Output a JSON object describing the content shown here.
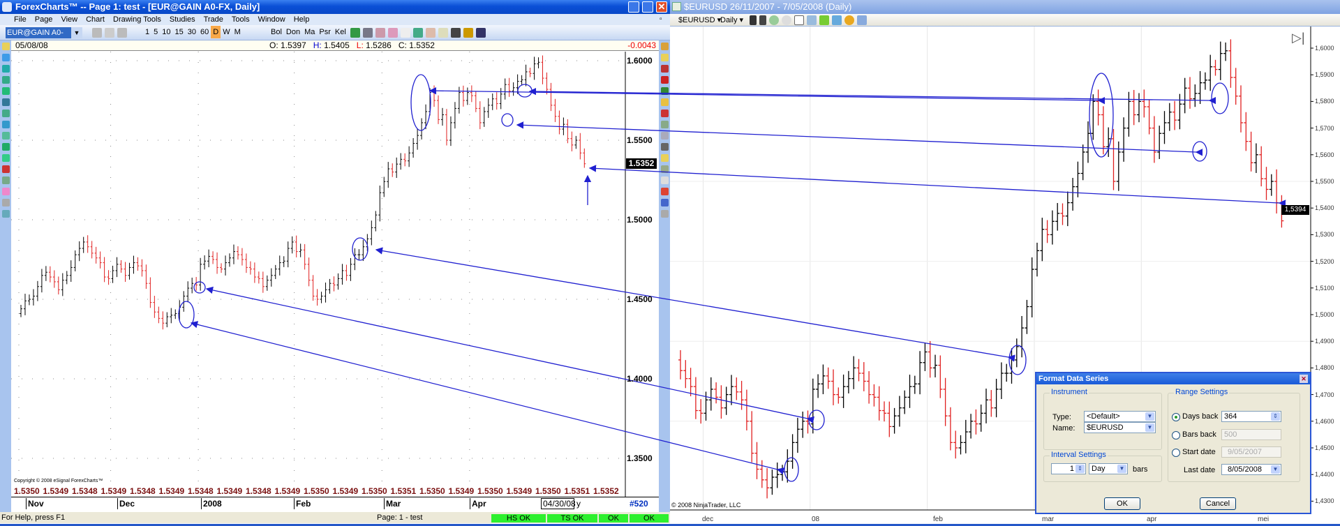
{
  "left_window": {
    "title": "ForexCharts™  --  Page 1: test - [EUR@GAIN A0-FX, Daily]",
    "menu": [
      "File",
      "Page",
      "View",
      "Chart",
      "Drawing Tools",
      "Studies",
      "Trade",
      "Tools",
      "Window",
      "Help"
    ],
    "symbol": "EUR@GAIN A0-FX",
    "intervals": [
      "1",
      "5",
      "10",
      "15",
      "30",
      "60",
      "D",
      "W",
      "M"
    ],
    "active_interval": "D",
    "studies": [
      "Bol",
      "Don",
      "Ma",
      "Psr",
      "Kel"
    ],
    "header": {
      "date": "05/08/08",
      "o_label": "O:",
      "o": "1.5397",
      "h_label": "H:",
      "h": "1.5405",
      "l_label": "L:",
      "l": "1.5286",
      "c_label": "C:",
      "c": "1.5352",
      "change": "-0.0043"
    },
    "price_ticks": [
      "1.6000",
      "1.5500",
      "1.5000",
      "1.4500",
      "1.4000",
      "1.3500"
    ],
    "last_price": "1.5352",
    "copyright": "Copyright © 2008 eSignal ForexCharts™",
    "price_row": [
      "1.5350",
      "1.5349",
      "1.5348",
      "1.5349",
      "1.5348",
      "1.5349",
      "1.5348",
      "1.5349",
      "1.5348",
      "1.5349",
      "1.5350",
      "1.5349",
      "1.5350",
      "1.5351",
      "1.5350",
      "1.5349",
      "1.5350",
      "1.5349",
      "1.5350",
      "1.5351",
      "1.5352"
    ],
    "months": [
      "Nov",
      "Dec",
      "2008",
      "Feb",
      "Mar",
      "Apr"
    ],
    "cursor_date": "04/30/08",
    "cursor_suffix": "y",
    "bar_count": "#520",
    "status": {
      "help": "For Help, press F1",
      "page": "Page: 1 - test",
      "boxes": [
        "HS OK",
        "TS OK",
        "OK",
        "OK"
      ]
    }
  },
  "right_window": {
    "title": "$EURUSD  26/11/2007 - 7/05/2008 (Daily)",
    "instrument": "$EURUSD",
    "interval": "Daily",
    "price_ticks": [
      "1,6000",
      "1,5900",
      "1,5800",
      "1,5700",
      "1,5600",
      "1,5500",
      "1,5400",
      "1,5300",
      "1,5200",
      "1,5100",
      "1,5000",
      "1,4900",
      "1,4800",
      "1,4700",
      "1,4600",
      "1,4500",
      "1,4400",
      "1,4300"
    ],
    "last_price": "1,5394",
    "months": [
      "dec",
      "08",
      "feb",
      "mar",
      "apr",
      "mei"
    ],
    "copyright": "© 2008 NinjaTrader, LLC"
  },
  "dialog": {
    "title": "Format Data Series",
    "instrument_group": "Instrument",
    "type_label": "Type:",
    "type_value": "<Default>",
    "name_label": "Name:",
    "name_value": "$EURUSD",
    "interval_group": "Interval Settings",
    "interval_value": "1",
    "interval_unit": "Day",
    "bars_label": "bars",
    "range_group": "Range Settings",
    "days_back_label": "Days back",
    "days_back_value": "364",
    "bars_back_label": "Bars back",
    "bars_back_value": "500",
    "start_date_label": "Start date",
    "start_date_value": "9/05/2007",
    "last_date_label": "Last date",
    "last_date_value": "8/05/2008",
    "selected_range": "Days back",
    "ok": "OK",
    "cancel": "Cancel"
  },
  "colors": {
    "up": "#000000",
    "down": "#e02020",
    "annotation": "#2020d0",
    "ok": "#2ef02e"
  },
  "chart_data": {
    "type": "ohlc",
    "closes": [
      1.444,
      1.449,
      1.45,
      1.452,
      1.458,
      1.465,
      1.467,
      1.464,
      1.461,
      1.456,
      1.462,
      1.465,
      1.47,
      1.478,
      1.482,
      1.486,
      1.483,
      1.479,
      1.476,
      1.473,
      1.464,
      1.463,
      1.468,
      1.472,
      1.469,
      1.465,
      1.47,
      1.473,
      1.471,
      1.468,
      1.46,
      1.448,
      1.442,
      1.438,
      1.435,
      1.439,
      1.44,
      1.441,
      1.445,
      1.452,
      1.457,
      1.46,
      1.459,
      1.472,
      1.474,
      1.477,
      1.475,
      1.47,
      1.469,
      1.473,
      1.476,
      1.48,
      1.478,
      1.475,
      1.47,
      1.469,
      1.464,
      1.463,
      1.458,
      1.462,
      1.465,
      1.469,
      1.473,
      1.474,
      1.482,
      1.486,
      1.48,
      1.481,
      1.472,
      1.462,
      1.452,
      1.45,
      1.452,
      1.456,
      1.46,
      1.459,
      1.463,
      1.468,
      1.465,
      1.472,
      1.478,
      1.478,
      1.483,
      1.488,
      1.495,
      1.503,
      1.517,
      1.524,
      1.532,
      1.53,
      1.535,
      1.538,
      1.537,
      1.542,
      1.548,
      1.553,
      1.561,
      1.568,
      1.58,
      1.575,
      1.563,
      1.566,
      1.55,
      1.561,
      1.57,
      1.58,
      1.575,
      1.58,
      1.578,
      1.57,
      1.561,
      1.568,
      1.572,
      1.576,
      1.573,
      1.579,
      1.585,
      1.581,
      1.583,
      1.587,
      1.588,
      1.593,
      1.592,
      1.598,
      1.599,
      1.589,
      1.582,
      1.572,
      1.565,
      1.557,
      1.56,
      1.551,
      1.547,
      1.55,
      1.542,
      1.5352
    ]
  }
}
